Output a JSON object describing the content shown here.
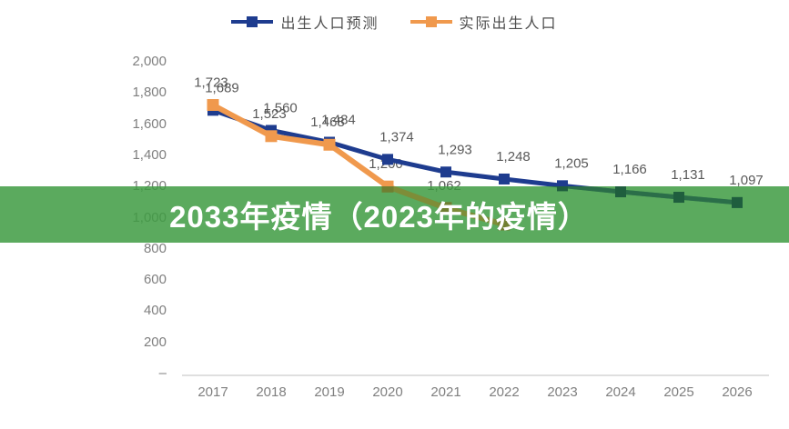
{
  "banner": {
    "text": "2033年疫情（2023年的疫情）",
    "bg_color": "#3E9B42",
    "bg_opacity": 0.85,
    "text_color": "#FFFFFF"
  },
  "legend": {
    "items": [
      {
        "label": "出生人口预测",
        "color": "#1E3C8F"
      },
      {
        "label": "实际出生人口",
        "color": "#F0994D"
      }
    ]
  },
  "chart_data": {
    "type": "line",
    "title": "",
    "x_labels": [
      "2017",
      "2018",
      "2019",
      "2020",
      "2021",
      "2022",
      "2023",
      "2024",
      "2025",
      "2026"
    ],
    "y_tick_labels": [
      "–",
      "200",
      "400",
      "600",
      "800",
      "1,000",
      "1,200",
      "1,400",
      "1,600",
      "1,800",
      "2,000"
    ],
    "ylim": [
      0,
      2000
    ],
    "y_tick_step": 200,
    "grid": false,
    "legend_position": "top-center",
    "axis_line_color": "#BFBFBF",
    "label_color": "#595959",
    "axis_label_color": "#7F7F7F",
    "series": [
      {
        "name": "出生人口预测",
        "color": "#1E3C8F",
        "marker": "square",
        "values": [
          1689,
          1560,
          1484,
          1374,
          1293,
          1248,
          1205,
          1166,
          1131,
          1097
        ],
        "labels": [
          "1,689",
          "1,560",
          "1,484",
          "1,374",
          "1,293",
          "1,248",
          "1,205",
          "1,166",
          "1,131",
          "1,097"
        ]
      },
      {
        "name": "实际出生人口",
        "color": "#F0994D",
        "marker": "square",
        "values": [
          1723,
          1523,
          1468,
          1200,
          1062,
          956,
          null,
          null,
          null,
          null
        ],
        "labels": [
          "1,723",
          "1,523",
          "1,468",
          "1,200",
          "1,062",
          "",
          null,
          null,
          null,
          null
        ]
      }
    ]
  }
}
